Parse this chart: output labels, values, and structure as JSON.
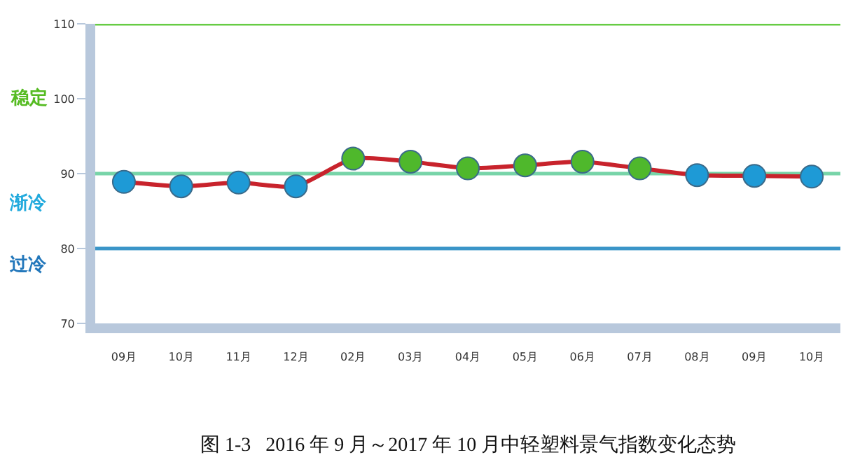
{
  "chart_data": {
    "type": "line",
    "categories": [
      "09月",
      "10月",
      "11月",
      "12月",
      "02月",
      "03月",
      "04月",
      "05月",
      "06月",
      "07月",
      "08月",
      "09月",
      "10月"
    ],
    "series": [
      {
        "color": "#c8232c",
        "values": [
          88.9,
          88.3,
          88.8,
          88.3,
          92.0,
          91.6,
          90.7,
          91.1,
          91.6,
          90.7,
          89.8,
          89.7,
          89.6
        ],
        "colors": [
          "#1e9ad6",
          "#1e9ad6",
          "#1e9ad6",
          "#1e9ad6",
          "#4fb82c",
          "#4fb82c",
          "#4fb82c",
          "#4fb82c",
          "#4fb82c",
          "#4fb82c",
          "#1e9ad6",
          "#1e9ad6",
          "#1e9ad6"
        ]
      }
    ],
    "marker": "circle",
    "ylim": [
      70,
      110
    ],
    "yticks": [
      70,
      80,
      90,
      100,
      110
    ],
    "grid": false,
    "ref_lines": [
      {
        "axis": "y",
        "value": 110,
        "color": "#66cc44"
      },
      {
        "axis": "y",
        "value": 90,
        "color": "#77d4a8"
      },
      {
        "axis": "y",
        "value": 80,
        "color": "#3a95c8"
      }
    ],
    "annotations": [
      "稳定",
      "渐冷",
      "过冷",
      "图 1-3   2016 年 9 月～2017 年 10 月中轻塑料景气指数变化态势"
    ]
  }
}
